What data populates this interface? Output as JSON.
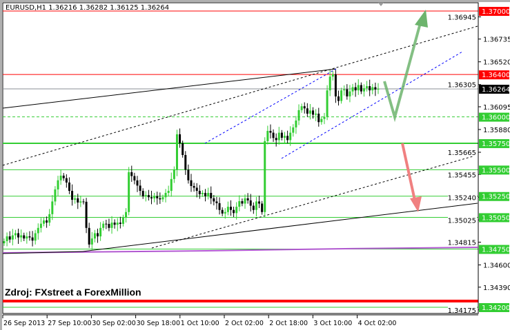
{
  "header": {
    "title": "EURUSD,H1  1.36216 1.36282 1.36125 1.36264"
  },
  "annotation": {
    "source": "Zdroj: FXstreet a ForexMillion"
  },
  "chart_data": {
    "type": "candlestick",
    "symbol": "EURUSD",
    "timeframe": "H1",
    "ylim": [
      1.3412,
      1.3717
    ],
    "x_tick_labels": [
      "26 Sep 2013",
      "27 Sep 10:00",
      "30 Sep 02:00",
      "30 Sep 18:00",
      "1 Oct 10:00",
      "2 Oct 02:00",
      "2 Oct 18:00",
      "3 Oct 10:00",
      "4 Oct 02:00"
    ],
    "y_tick_labels": [
      "1.36945",
      "1.36735",
      "1.36520",
      "1.36305",
      "1.36095",
      "1.35880",
      "1.35665",
      "1.35455",
      "1.35240",
      "1.35025",
      "1.34815",
      "1.34600",
      "1.34390",
      "1.34175"
    ],
    "closes": [
      1.34825,
      1.3487,
      1.3484,
      1.3488,
      1.349,
      1.3486,
      1.3488,
      1.3485,
      1.3487,
      1.3486,
      1.3483,
      1.349,
      1.3495,
      1.3499,
      1.35021,
      1.35,
      1.3508,
      1.352,
      1.35314,
      1.354,
      1.35444,
      1.3542,
      1.35379,
      1.353,
      1.35216,
      1.3523,
      1.3519,
      1.352,
      1.35197,
      1.3495,
      1.34793,
      1.3485,
      1.349,
      1.3487,
      1.3495,
      1.3499,
      1.34988,
      1.3495,
      1.35,
      1.3498,
      1.35,
      1.34988,
      1.3505,
      1.351,
      1.35477,
      1.3544,
      1.35399,
      1.3535,
      1.353,
      1.35249,
      1.3526,
      1.3524,
      1.35229,
      1.3525,
      1.3523,
      1.3522,
      1.3524,
      1.35281,
      1.353,
      1.35412,
      1.355,
      1.35835,
      1.3575,
      1.35639,
      1.355,
      1.354,
      1.35346,
      1.3533,
      1.353,
      1.35268,
      1.35281,
      1.3525,
      1.35281,
      1.3523,
      1.352,
      1.35184,
      1.3512,
      1.35086,
      1.351,
      1.3515,
      1.3512,
      1.3509,
      1.3515,
      1.35203,
      1.3518,
      1.3523,
      1.3521,
      1.3516,
      1.3512,
      1.352,
      1.3518,
      1.351,
      1.3577,
      1.35867,
      1.3585,
      1.358,
      1.3578,
      1.3585,
      1.35802,
      1.3582,
      1.3578,
      1.3585,
      1.359,
      1.35965,
      1.36063,
      1.361,
      1.3608,
      1.3603,
      1.3606,
      1.3602,
      1.3603,
      1.3595,
      1.3598,
      1.36,
      1.3625,
      1.3638,
      1.36401,
      1.36193,
      1.3615,
      1.3625,
      1.3626,
      1.36193,
      1.3624,
      1.3628,
      1.3625,
      1.363,
      1.3624,
      1.3627,
      1.3629,
      1.3625,
      1.3628,
      1.36258,
      1.36264
    ],
    "levels": [
      {
        "price": 1.37,
        "label": "1.37000",
        "color": "#ff0000"
      },
      {
        "price": 1.364,
        "label": "1.36400",
        "color": "#ff0000"
      },
      {
        "price": 1.36264,
        "label": "1.36264",
        "color": "#000000",
        "line": "#8a8f94"
      },
      {
        "price": 1.36,
        "label": "1.36000",
        "color": "#32cd32",
        "dashed": true
      },
      {
        "price": 1.3575,
        "label": "1.35750",
        "color": "#32cd32",
        "thick": true
      },
      {
        "price": 1.355,
        "label": "1.35500",
        "color": "#32cd32"
      },
      {
        "price": 1.3525,
        "label": "1.35250",
        "color": "#32cd32"
      },
      {
        "price": 1.3505,
        "label": "1.35050",
        "color": "#32cd32"
      },
      {
        "price": 1.3475,
        "label": "1.34750",
        "color": "#32cd32"
      },
      {
        "price": 1.342,
        "label": "1.34200",
        "color": "#32cd32"
      }
    ],
    "colors": {
      "bull": "#32cd32",
      "bear": "#000000",
      "support_purple": "#b057d0",
      "red_zone": "#ff0000"
    }
  }
}
